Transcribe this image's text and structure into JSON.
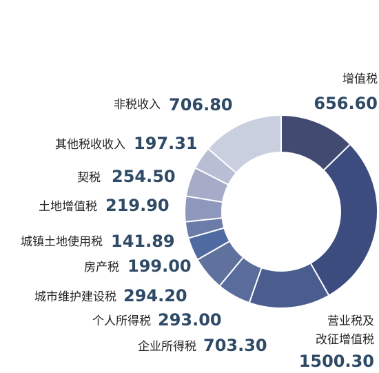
{
  "chart_data": {
    "type": "pie",
    "variant": "donut",
    "title": "",
    "categories": [
      "增值税",
      "营业税及改征增值税",
      "企业所得税",
      "个人所得税",
      "城市维护建设税",
      "房产税",
      "城镇土地使用税",
      "土地增值税",
      "契税",
      "其他税收收入",
      "非税收入"
    ],
    "values": [
      656.6,
      1500.3,
      703.3,
      293.0,
      294.2,
      199.0,
      141.89,
      219.9,
      254.5,
      197.31,
      706.8
    ],
    "value_labels": [
      "656.60",
      "1500.30",
      "703.30",
      "293.00",
      "294.20",
      "199.00",
      "141.89",
      "219.90",
      "254.50",
      "197.31",
      "706.80"
    ],
    "colors": [
      "#434a72",
      "#3c4c7e",
      "#4b5d8f",
      "#5a6c9c",
      "#60719e",
      "#4f6aa0",
      "#6b7ca8",
      "#8e97bc",
      "#a6acc8",
      "#b8bed4",
      "#cacfe0"
    ],
    "value_color": "#2f4a66",
    "label_color": "#222222",
    "legend": "none"
  }
}
